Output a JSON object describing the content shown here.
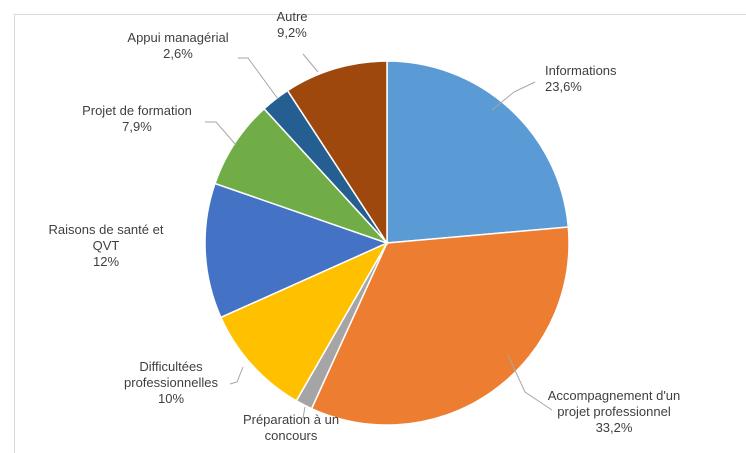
{
  "chart_data": {
    "type": "pie",
    "title": "",
    "slices": [
      {
        "label_lines": [
          "Informations"
        ],
        "value_text": "23,6%",
        "value": 23.6,
        "color": "#5b9bd5"
      },
      {
        "label_lines": [
          "Accompagnement d'un",
          "projet professionnel"
        ],
        "value_text": "33,2%",
        "value": 33.2,
        "color": "#ed7d31"
      },
      {
        "label_lines": [
          "Préparation à un",
          "concours"
        ],
        "value_text": "",
        "value": 1.5,
        "color": "#a5a5a5"
      },
      {
        "label_lines": [
          "Difficultées",
          "professionnelles"
        ],
        "value_text": "10%",
        "value": 10,
        "color": "#ffc000"
      },
      {
        "label_lines": [
          "Raisons de santé et",
          "QVT"
        ],
        "value_text": "12%",
        "value": 12,
        "color": "#4472c4"
      },
      {
        "label_lines": [
          "Projet de formation"
        ],
        "value_text": "7,9%",
        "value": 7.9,
        "color": "#70ad47"
      },
      {
        "label_lines": [
          "Appui managérial"
        ],
        "value_text": "2,6%",
        "value": 2.6,
        "color": "#255e91"
      },
      {
        "label_lines": [
          "Autre"
        ],
        "value_text": "9,2%",
        "value": 9.2,
        "color": "#9e480e"
      }
    ],
    "legend": "none",
    "start_angle_deg": 0,
    "direction": "clockwise"
  }
}
